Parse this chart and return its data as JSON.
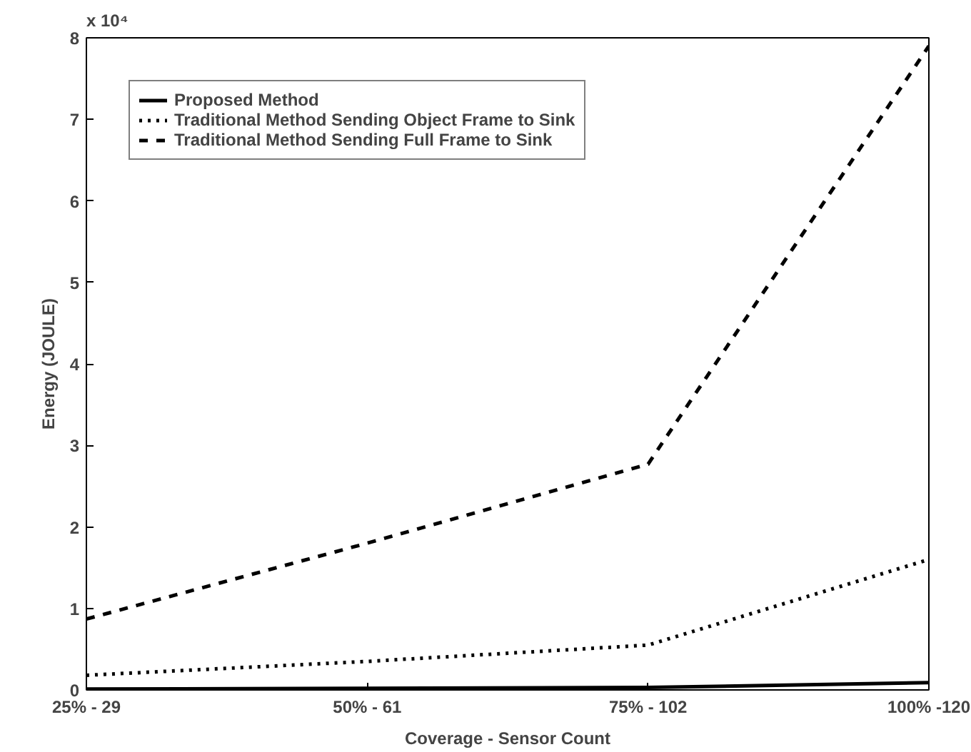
{
  "chart_data": {
    "type": "line",
    "xlabel": "Coverage - Sensor Count",
    "ylabel": "Energy (JOULE)",
    "categories": [
      "25% - 29",
      "50% - 61",
      "75% - 102",
      "100% -120"
    ],
    "ylim": [
      0,
      8
    ],
    "yticks": [
      0,
      1,
      2,
      3,
      4,
      5,
      6,
      7,
      8
    ],
    "annotations": [
      "x 10⁴"
    ],
    "legend": "top left",
    "grid": false,
    "series": [
      {
        "name": "Proposed Method",
        "color": "#000000",
        "line_style": "solid",
        "values": [
          0.01,
          0.02,
          0.03,
          0.09
        ]
      },
      {
        "name": "Traditional Method Sending Object Frame to Sink",
        "color": "#000000",
        "line_style": "dotted",
        "values": [
          0.18,
          0.35,
          0.55,
          1.6
        ]
      },
      {
        "name": "Traditional Method Sending Full Frame to Sink",
        "color": "#000000",
        "line_style": "dashed",
        "values": [
          0.87,
          1.8,
          2.77,
          7.9
        ]
      }
    ]
  }
}
